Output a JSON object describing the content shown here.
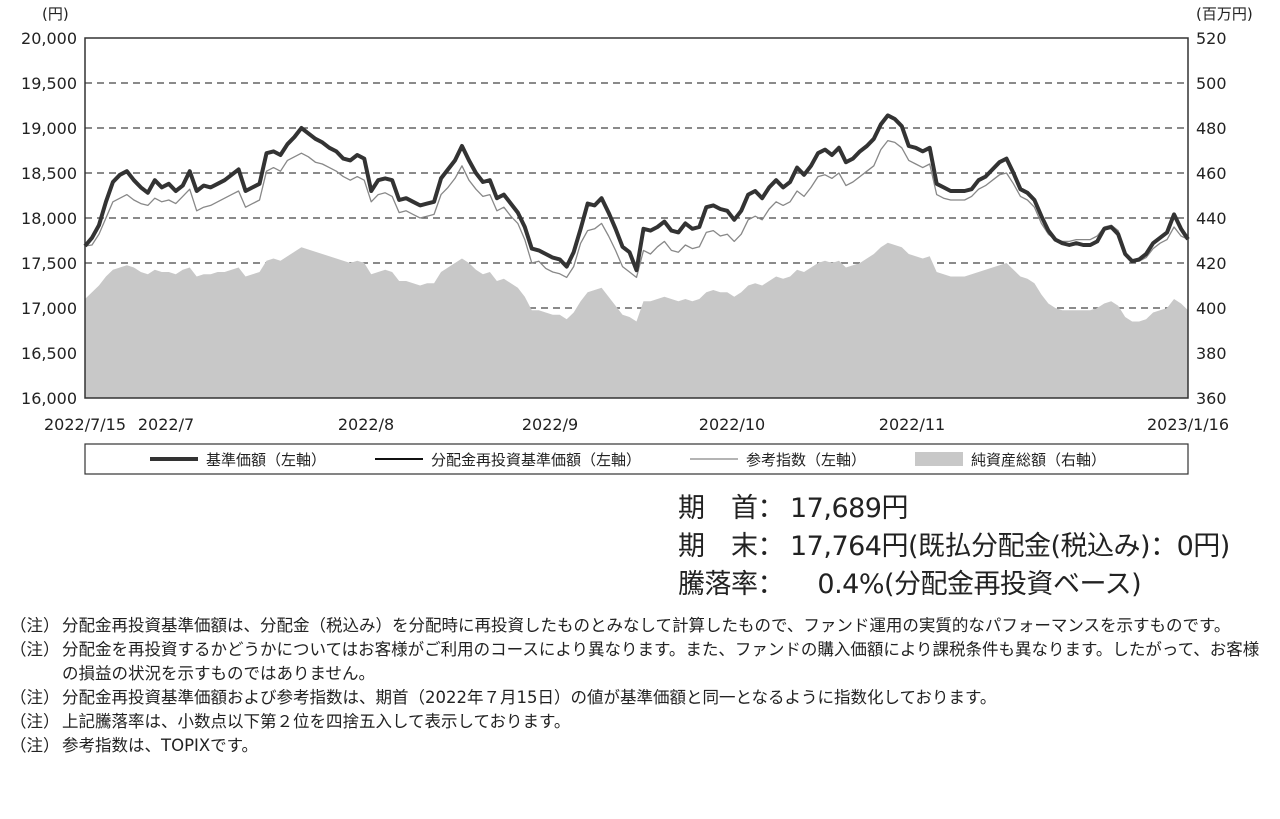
{
  "chart_data": {
    "type": "line",
    "left_axis_unit": "(円)",
    "right_axis_unit": "(百万円)",
    "y_left_range": [
      16000,
      20000
    ],
    "y_right_range": [
      360,
      520
    ],
    "y_left_ticks": [
      "16,000",
      "16,500",
      "17,000",
      "17,500",
      "18,000",
      "18,500",
      "19,000",
      "19,500",
      "20,000"
    ],
    "y_right_ticks": [
      "360",
      "380",
      "400",
      "420",
      "440",
      "460",
      "480",
      "500",
      "520"
    ],
    "x_ticks": [
      "2022/7/15",
      "2022/7",
      "2022/8",
      "2022/9",
      "2022/10",
      "2022/11",
      "2023/1/16"
    ],
    "grid": "horizontal dashed",
    "legend_position": "bottom",
    "series": [
      {
        "name": "基準価額（左軸）",
        "axis": "left",
        "style": "thick",
        "color": "#333333",
        "values": [
          17689,
          17780,
          17920,
          18180,
          18400,
          18480,
          18520,
          18420,
          18340,
          18280,
          18420,
          18340,
          18380,
          18300,
          18360,
          18520,
          18300,
          18360,
          18340,
          18380,
          18420,
          18480,
          18540,
          18300,
          18340,
          18380,
          18720,
          18740,
          18700,
          18820,
          18900,
          19000,
          18940,
          18880,
          18840,
          18780,
          18740,
          18660,
          18640,
          18700,
          18660,
          18300,
          18420,
          18440,
          18420,
          18200,
          18220,
          18180,
          18140,
          18160,
          18180,
          18440,
          18540,
          18640,
          18800,
          18640,
          18500,
          18400,
          18420,
          18220,
          18260,
          18160,
          18060,
          17900,
          17660,
          17640,
          17600,
          17560,
          17540,
          17460,
          17620,
          17880,
          18160,
          18140,
          18220,
          18060,
          17880,
          17680,
          17620,
          17420,
          17880,
          17860,
          17900,
          17960,
          17860,
          17840,
          17940,
          17880,
          17900,
          18120,
          18140,
          18100,
          18080,
          17980,
          18080,
          18260,
          18300,
          18220,
          18340,
          18420,
          18340,
          18400,
          18560,
          18480,
          18580,
          18720,
          18760,
          18700,
          18780,
          18620,
          18660,
          18740,
          18800,
          18880,
          19040,
          19140,
          19100,
          19020,
          18800,
          18780,
          18740,
          18780,
          18380,
          18340,
          18300,
          18300,
          18300,
          18320,
          18420,
          18460,
          18540,
          18620,
          18660,
          18500,
          18320,
          18280,
          18200,
          18020,
          17860,
          17760,
          17720,
          17700,
          17720,
          17700,
          17700,
          17740,
          17880,
          17900,
          17820,
          17600,
          17520,
          17540,
          17600,
          17720,
          17780,
          17840,
          18040,
          17880,
          17764
        ]
      },
      {
        "name": "分配金再投資基準価額（左軸）",
        "axis": "left",
        "style": "thin",
        "color": "#111111",
        "values": []
      },
      {
        "name": "参考指数（左軸）",
        "axis": "left",
        "style": "thin",
        "color": "#888888",
        "values": [
          17689,
          17700,
          17820,
          18000,
          18180,
          18220,
          18260,
          18200,
          18160,
          18140,
          18220,
          18180,
          18200,
          18160,
          18240,
          18320,
          18080,
          18120,
          18140,
          18180,
          18220,
          18260,
          18300,
          18120,
          18160,
          18200,
          18520,
          18560,
          18520,
          18640,
          18680,
          18720,
          18680,
          18620,
          18600,
          18560,
          18520,
          18460,
          18420,
          18460,
          18420,
          18180,
          18260,
          18280,
          18240,
          18060,
          18080,
          18040,
          18000,
          18020,
          18040,
          18260,
          18340,
          18440,
          18580,
          18420,
          18320,
          18240,
          18260,
          18080,
          18120,
          18020,
          17940,
          17760,
          17500,
          17520,
          17440,
          17400,
          17380,
          17340,
          17460,
          17720,
          17860,
          17880,
          17940,
          17800,
          17640,
          17460,
          17400,
          17340,
          17640,
          17600,
          17680,
          17740,
          17640,
          17620,
          17700,
          17660,
          17680,
          17840,
          17860,
          17800,
          17820,
          17740,
          17820,
          17980,
          18020,
          17980,
          18100,
          18180,
          18140,
          18180,
          18300,
          18240,
          18340,
          18460,
          18480,
          18440,
          18500,
          18360,
          18400,
          18460,
          18520,
          18580,
          18760,
          18860,
          18840,
          18780,
          18640,
          18600,
          18560,
          18600,
          18260,
          18220,
          18200,
          18200,
          18200,
          18240,
          18320,
          18360,
          18420,
          18480,
          18500,
          18380,
          18240,
          18200,
          18120,
          17940,
          17820,
          17760,
          17740,
          17740,
          17760,
          17760,
          17760,
          17800,
          17900,
          17920,
          17860,
          17620,
          17520,
          17520,
          17560,
          17660,
          17720,
          17760,
          17900,
          17800,
          17764
        ]
      },
      {
        "name": "純資産総額（右軸）",
        "axis": "right",
        "style": "area",
        "color": "#c8c8c8",
        "values": [
          404,
          407,
          410,
          414,
          417,
          418,
          419,
          418,
          416,
          415,
          417,
          416,
          416,
          415,
          417,
          418,
          414,
          415,
          415,
          416,
          416,
          417,
          418,
          414,
          415,
          416,
          421,
          422,
          421,
          423,
          425,
          427,
          426,
          425,
          424,
          423,
          422,
          421,
          420,
          421,
          420,
          415,
          416,
          417,
          416,
          412,
          412,
          411,
          410,
          411,
          411,
          416,
          418,
          420,
          422,
          420,
          417,
          415,
          416,
          412,
          413,
          411,
          409,
          405,
          399,
          399,
          398,
          397,
          397,
          395,
          398,
          403,
          407,
          408,
          409,
          405,
          401,
          397,
          396,
          394,
          403,
          403,
          404,
          405,
          404,
          403,
          404,
          403,
          404,
          407,
          408,
          407,
          407,
          405,
          407,
          410,
          411,
          410,
          412,
          414,
          413,
          414,
          417,
          416,
          418,
          420,
          421,
          420,
          421,
          418,
          419,
          420,
          422,
          424,
          427,
          429,
          428,
          427,
          424,
          423,
          422,
          423,
          416,
          415,
          414,
          414,
          414,
          415,
          416,
          417,
          418,
          419,
          420,
          417,
          414,
          413,
          411,
          406,
          402,
          400,
          399,
          399,
          399,
          399,
          399,
          400,
          402,
          403,
          401,
          396,
          394,
          394,
          395,
          398,
          399,
          400,
          404,
          402,
          399
        ]
      }
    ]
  },
  "summary": {
    "start_label": "期　首：",
    "start_value": "17,689円",
    "end_label": "期　末：",
    "end_value": "17,764円",
    "end_note": "(既払分配金(税込み)：0円)",
    "change_label": "騰落率：",
    "change_value": "0.4%",
    "change_note": "(分配金再投資ベース)"
  },
  "notes": [
    {
      "mark": "（注）",
      "text": "分配金再投資基準価額は、分配金（税込み）を分配時に再投資したものとみなして計算したもので、ファンド運用の実質的なパフォーマンスを示すものです。"
    },
    {
      "mark": "（注）",
      "text": "分配金を再投資するかどうかについてはお客様がご利用のコースにより異なります。また、ファンドの購入価額により課税条件も異なります。したがって、お客様の損益の状況を示すものではありません。"
    },
    {
      "mark": "（注）",
      "text": "分配金再投資基準価額および参考指数は、期首（2022年７月15日）の値が基準価額と同一となるように指数化しております。"
    },
    {
      "mark": "（注）",
      "text": "上記騰落率は、小数点以下第２位を四捨五入して表示しております。"
    },
    {
      "mark": "（注）",
      "text": "参考指数は、TOPIXです。"
    }
  ]
}
